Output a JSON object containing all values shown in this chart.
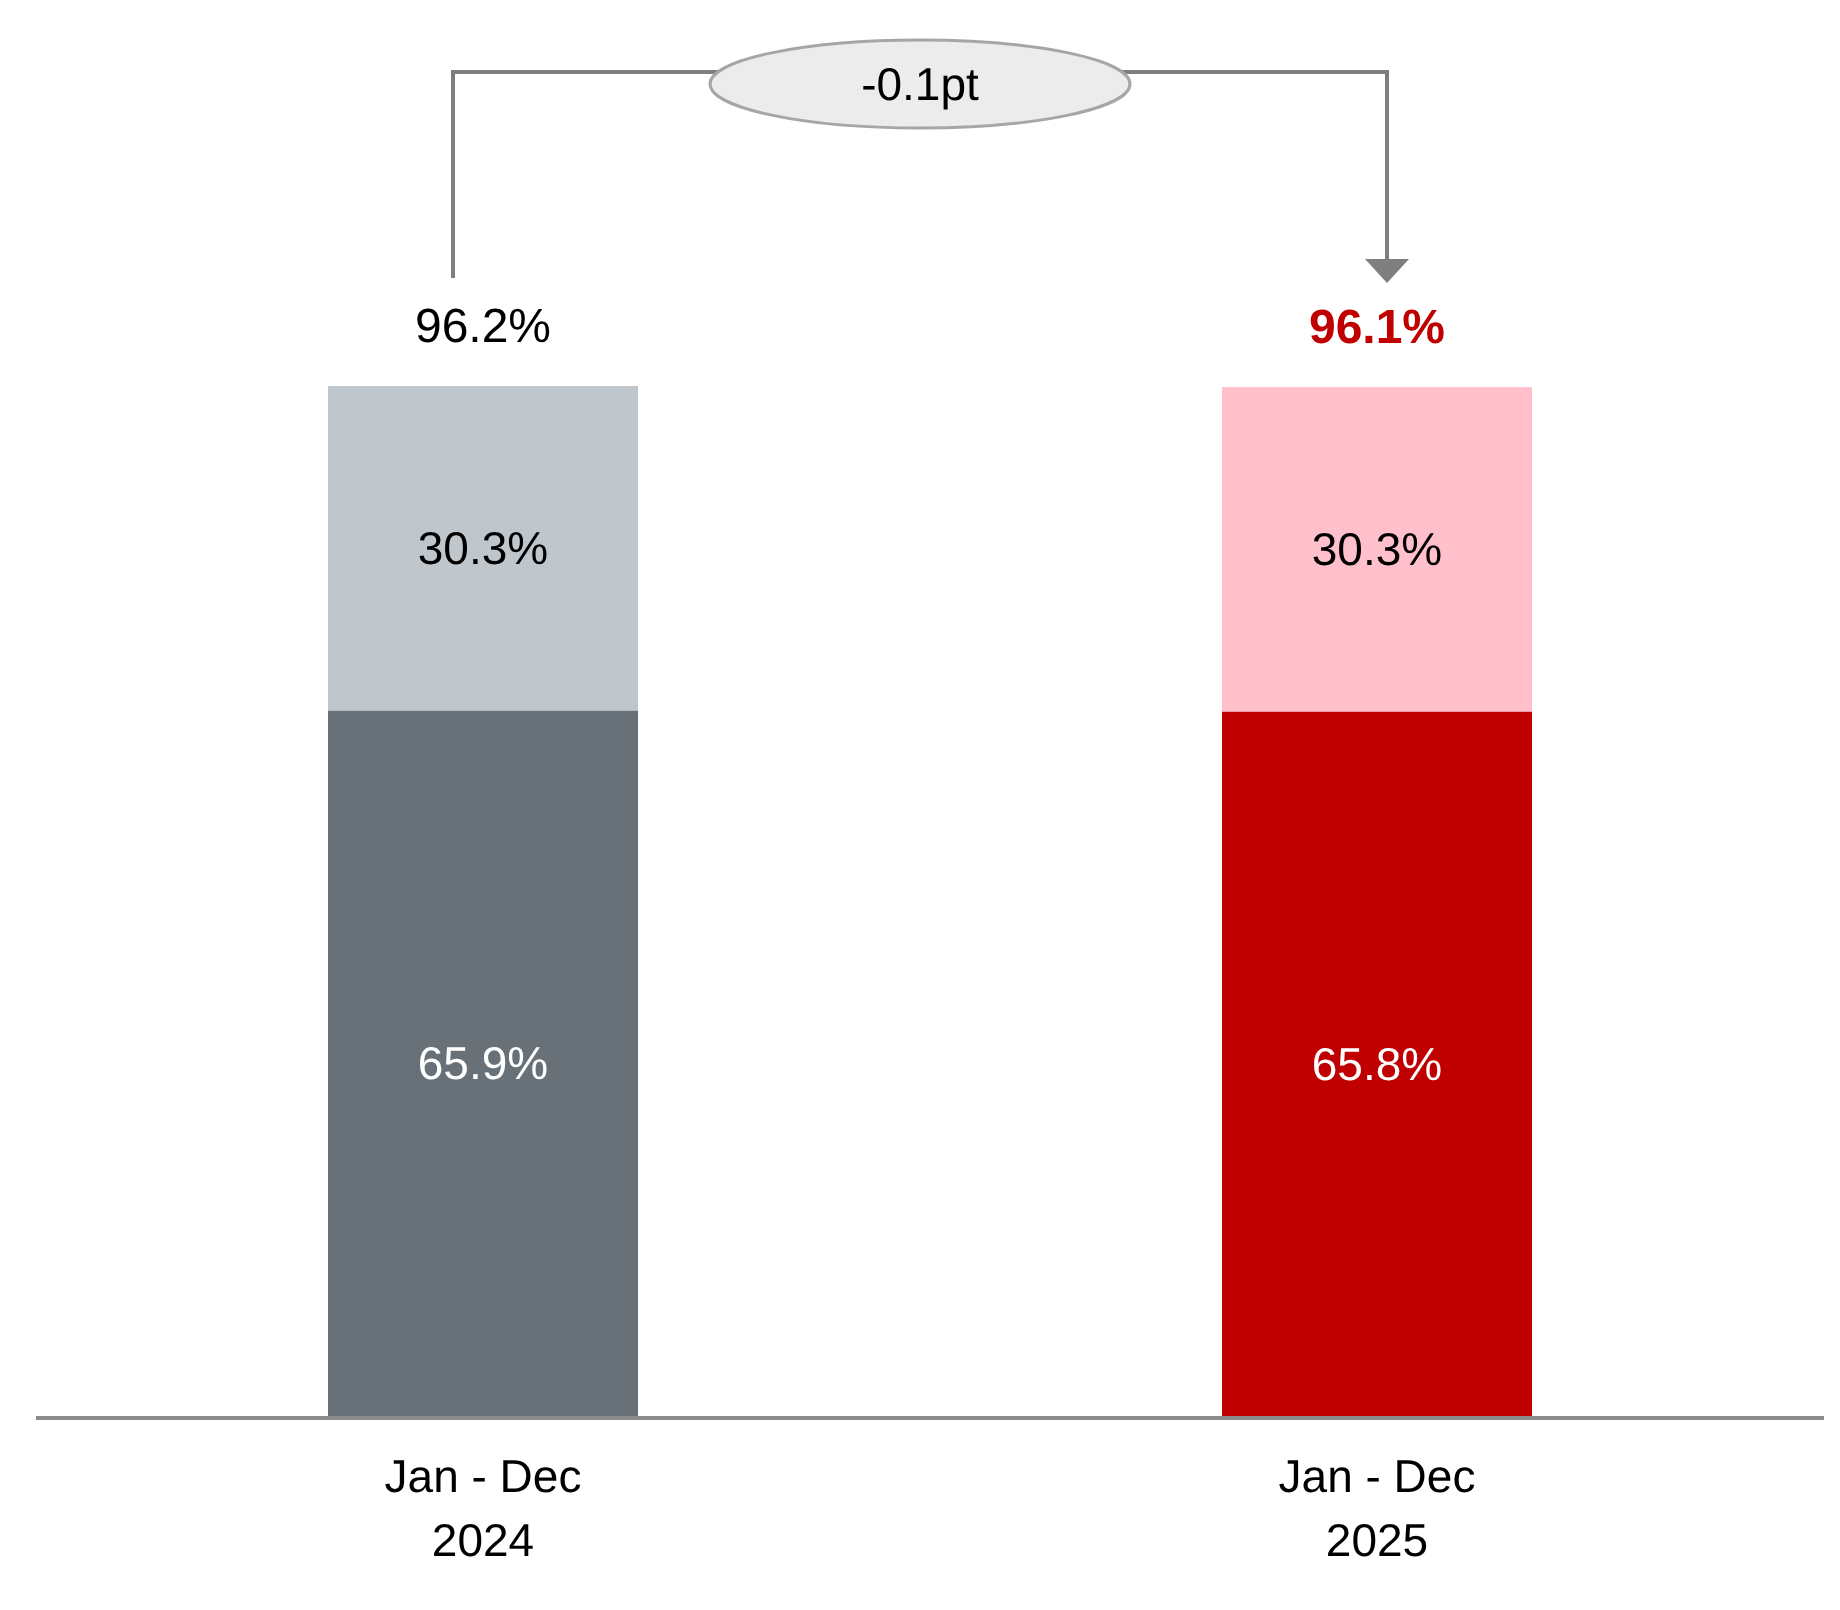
{
  "chart_data": {
    "type": "bar",
    "stacked": true,
    "categories": [
      "Jan - Dec\n2024",
      "Jan - Dec\n2025"
    ],
    "series": [
      {
        "colors": [
          "#687177",
          "#c00000"
        ],
        "values": [
          65.9,
          65.8
        ],
        "value_labels": [
          "65.9%",
          "65.8%"
        ]
      },
      {
        "colors": [
          "#c0c7cc",
          "#ffc0cb"
        ],
        "values": [
          30.3,
          30.3
        ],
        "value_labels": [
          "30.3%",
          "30.3%"
        ]
      }
    ],
    "totals": [
      "96.2%",
      "96.1%"
    ],
    "annotations": [
      "-0.1pt"
    ]
  }
}
